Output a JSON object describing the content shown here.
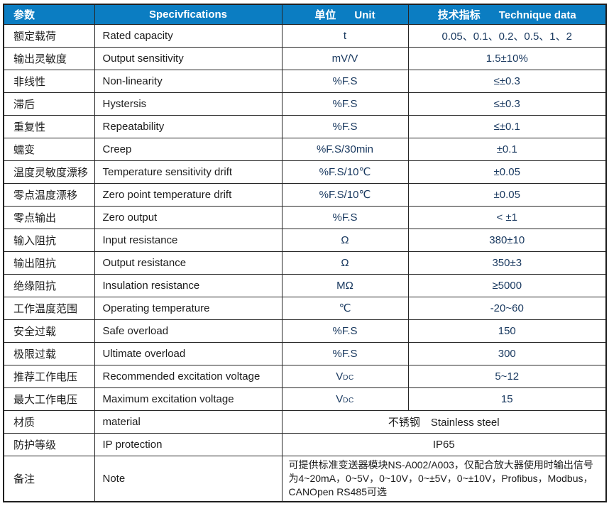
{
  "colors": {
    "header_bg": "#0b7dc2",
    "header_text": "#ffffff",
    "value_text": "#17375e",
    "body_text": "#1c1c1c",
    "border": "#262626"
  },
  "table": {
    "header": [
      {
        "cn": "参数",
        "en": ""
      },
      {
        "cn": "",
        "en": "Specivfications"
      },
      {
        "cn": "单位",
        "en": "Unit"
      },
      {
        "cn": "技术指标",
        "en": "Technique data"
      }
    ],
    "rows": [
      {
        "cn": "额定载荷",
        "en": "Rated capacity",
        "unit": "t",
        "value": "0.05、0.1、0.2、0.5、1、2"
      },
      {
        "cn": "输出灵敏度",
        "en": "Output sensitivity",
        "unit": "mV/V",
        "value": "1.5±10%"
      },
      {
        "cn": "非线性",
        "en": "Non-linearity",
        "unit": "%F.S",
        "value": "≤±0.3"
      },
      {
        "cn": "滞后",
        "en": "Hystersis",
        "unit": "%F.S",
        "value": "≤±0.3"
      },
      {
        "cn": "重复性",
        "en": "Repeatability",
        "unit": "%F.S",
        "value": "≤±0.1"
      },
      {
        "cn": "蠕变",
        "en": "Creep",
        "unit": "%F.S/30min",
        "value": "±0.1"
      },
      {
        "cn": "温度灵敏度漂移",
        "en": "Temperature sensitivity drift",
        "unit": "%F.S/10℃",
        "value": "±0.05"
      },
      {
        "cn": "零点温度漂移",
        "en": "Zero point temperature drift",
        "unit": "%F.S/10℃",
        "value": "±0.05"
      },
      {
        "cn": "零点输出",
        "en": "Zero output",
        "unit": "%F.S",
        "value": "< ±1"
      },
      {
        "cn": "输入阻抗",
        "en": "Input resistance",
        "unit": "Ω",
        "value": "380±10"
      },
      {
        "cn": "输出阻抗",
        "en": "Output resistance",
        "unit": "Ω",
        "value": "350±3"
      },
      {
        "cn": "绝缘阻抗",
        "en": "Insulation resistance",
        "unit": "MΩ",
        "value": "≥5000"
      },
      {
        "cn": "工作温度范围",
        "en": "Operating temperature",
        "unit": "℃",
        "value": "-20~60"
      },
      {
        "cn": "安全过载",
        "en": "Safe overload",
        "unit": "%F.S",
        "value": "150"
      },
      {
        "cn": "极限过载",
        "en": "Ultimate overload",
        "unit": "%F.S",
        "value": "300"
      },
      {
        "cn": "推荐工作电压",
        "en": "Recommended excitation voltage",
        "unit": {
          "base": "V",
          "sub": "DC"
        },
        "value": "5~12"
      },
      {
        "cn": "最大工作电压",
        "en": "Maximum excitation voltage",
        "unit": {
          "base": "V",
          "sub": "DC"
        },
        "value": "15"
      },
      {
        "cn": "材质",
        "en": "material",
        "merged": "不锈钢　Stainless steel"
      },
      {
        "cn": "防护等级",
        "en": "IP protection",
        "merged": "IP65"
      },
      {
        "cn": "备注",
        "en": "Note",
        "merged": "可提供标准变送器模块NS-A002/A003，仅配合放大器使用时输出信号为4~20mA，0~5V，0~10V，0~±5V，0~±10V，Profibus，Modbus，CANOpen  RS485可选",
        "note": true
      }
    ]
  }
}
